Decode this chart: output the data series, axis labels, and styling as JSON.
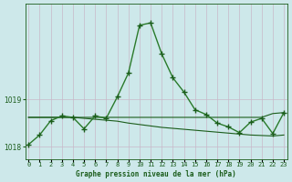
{
  "xlabel": "Graphe pression niveau de la mer (hPa)",
  "hours": [
    0,
    1,
    2,
    3,
    4,
    5,
    6,
    7,
    8,
    9,
    10,
    11,
    12,
    13,
    14,
    15,
    16,
    17,
    18,
    19,
    20,
    21,
    22,
    23
  ],
  "pressure_main": [
    1018.05,
    1018.25,
    1018.55,
    1018.65,
    1018.62,
    1018.38,
    1018.65,
    1018.6,
    1019.05,
    1019.55,
    1020.55,
    1020.6,
    1019.95,
    1019.45,
    1019.15,
    1018.78,
    1018.68,
    1018.5,
    1018.42,
    1018.3,
    1018.52,
    1018.6,
    1018.28,
    1018.72
  ],
  "pressure_flat": [
    1018.62,
    1018.62,
    1018.62,
    1018.62,
    1018.62,
    1018.62,
    1018.62,
    1018.62,
    1018.62,
    1018.62,
    1018.62,
    1018.62,
    1018.62,
    1018.62,
    1018.62,
    1018.62,
    1018.62,
    1018.62,
    1018.62,
    1018.62,
    1018.62,
    1018.62,
    1018.7,
    1018.72
  ],
  "pressure_declining": [
    1018.62,
    1018.62,
    1018.62,
    1018.62,
    1018.62,
    1018.6,
    1018.58,
    1018.56,
    1018.54,
    1018.5,
    1018.47,
    1018.44,
    1018.41,
    1018.39,
    1018.37,
    1018.35,
    1018.33,
    1018.31,
    1018.29,
    1018.27,
    1018.25,
    1018.24,
    1018.23,
    1018.25
  ],
  "bg_color": "#cde8ea",
  "grid_color_v": "#c8b8c8",
  "grid_color_h": "#c8b8c8",
  "line_color_dark": "#1a5c1a",
  "line_color_med": "#2a7a2a",
  "yticks": [
    1018,
    1019
  ],
  "ylim": [
    1017.75,
    1021.0
  ],
  "xlim": [
    -0.3,
    23.3
  ]
}
